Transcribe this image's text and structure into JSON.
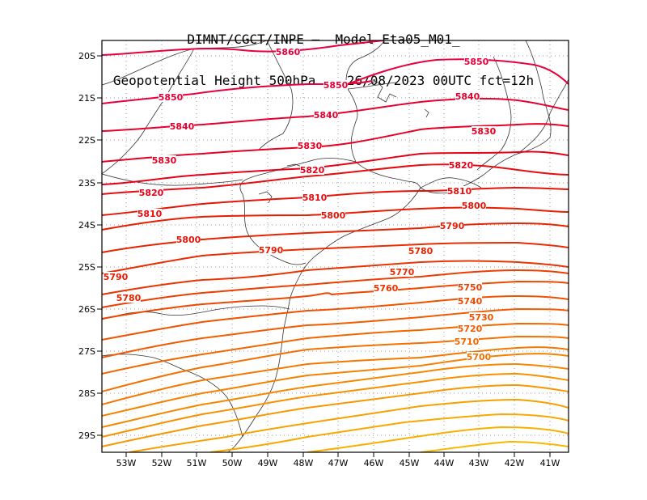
{
  "title": {
    "line1": "DIMNT/CGCT/INPE –  Model Eta05_M01_",
    "line2": "Geopotential Height 500hPa –  26/08/2023 00UTC fct=12h"
  },
  "axes": {
    "lat_labels": [
      "20S",
      "21S",
      "22S",
      "23S",
      "24S",
      "25S",
      "26S",
      "27S",
      "28S",
      "29S"
    ],
    "lon_labels": [
      "53W",
      "52W",
      "51W",
      "50W",
      "49W",
      "48W",
      "47W",
      "46W",
      "45W",
      "44W",
      "43W",
      "42W",
      "41W"
    ]
  },
  "contour_labels": [
    {
      "text": "5860",
      "color": "#e8003c"
    },
    {
      "text": "5850",
      "color": "#e8003c"
    },
    {
      "text": "5850",
      "color": "#e8003c"
    },
    {
      "text": "5850",
      "color": "#e8003c"
    },
    {
      "text": "5840",
      "color": "#e6002e"
    },
    {
      "text": "5840",
      "color": "#e6002e"
    },
    {
      "text": "5840",
      "color": "#e6002e"
    },
    {
      "text": "5830",
      "color": "#e60024"
    },
    {
      "text": "5830",
      "color": "#e60024"
    },
    {
      "text": "5830",
      "color": "#e60024"
    },
    {
      "text": "5820",
      "color": "#e6001a"
    },
    {
      "text": "5820",
      "color": "#e6001a"
    },
    {
      "text": "5820",
      "color": "#e6001a"
    },
    {
      "text": "5810",
      "color": "#e60c10"
    },
    {
      "text": "5810",
      "color": "#e60c10"
    },
    {
      "text": "5810",
      "color": "#e60c10"
    },
    {
      "text": "5800",
      "color": "#e61408"
    },
    {
      "text": "5800",
      "color": "#e61408"
    },
    {
      "text": "5800",
      "color": "#e61408"
    },
    {
      "text": "5790",
      "color": "#e81c00"
    },
    {
      "text": "5790",
      "color": "#e81c00"
    },
    {
      "text": "5790",
      "color": "#e81c00"
    },
    {
      "text": "5780",
      "color": "#e82400"
    },
    {
      "text": "5780",
      "color": "#e82400"
    },
    {
      "text": "5770",
      "color": "#ea2c00"
    },
    {
      "text": "5760",
      "color": "#ea3400"
    },
    {
      "text": "5750",
      "color": "#ec3e00"
    },
    {
      "text": "5740",
      "color": "#ee4800"
    },
    {
      "text": "5730",
      "color": "#f05200"
    },
    {
      "text": "5720",
      "color": "#f05c00"
    },
    {
      "text": "5710",
      "color": "#f26600"
    },
    {
      "text": "5700",
      "color": "#f47000"
    }
  ]
}
